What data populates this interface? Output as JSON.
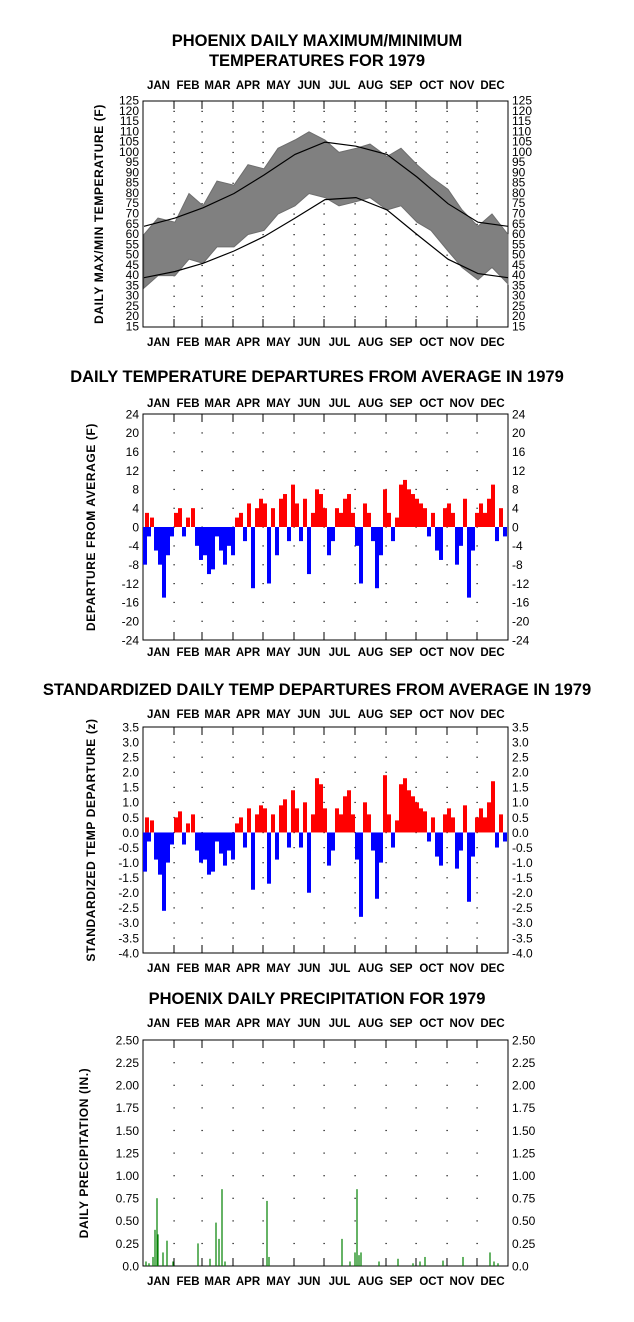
{
  "chart_data": [
    {
      "type": "area",
      "title_lines": [
        "PHOENIX DAILY MAXIMUM/MINIMUM",
        "TEMPERATURES FOR 1979"
      ],
      "ylabel": "DAILY MAX/MIN TEMPERATURE (F)",
      "months": [
        "JAN",
        "FEB",
        "MAR",
        "APR",
        "MAY",
        "JUN",
        "JUL",
        "AUG",
        "SEP",
        "OCT",
        "NOV",
        "DEC"
      ],
      "ylim": [
        15,
        125
      ],
      "yticks": [
        15,
        20,
        25,
        30,
        35,
        40,
        45,
        50,
        55,
        60,
        65,
        70,
        75,
        80,
        85,
        90,
        95,
        100,
        105,
        110,
        115,
        120,
        125
      ],
      "grid": "dotted",
      "series": [
        {
          "role": "observed daily max",
          "x_day": [
            1,
            15,
            32,
            46,
            60,
            74,
            91,
            105,
            121,
            135,
            152,
            166,
            182,
            196,
            213,
            227,
            244,
            258,
            274,
            288,
            305,
            319,
            335,
            349,
            365
          ],
          "values": [
            60,
            68,
            66,
            80,
            74,
            86,
            84,
            94,
            92,
            102,
            106,
            110,
            106,
            100,
            102,
            104,
            98,
            102,
            94,
            88,
            82,
            72,
            64,
            70,
            60
          ]
        },
        {
          "role": "observed daily min",
          "x_day": [
            1,
            15,
            32,
            46,
            60,
            74,
            91,
            105,
            121,
            135,
            152,
            166,
            182,
            196,
            213,
            227,
            244,
            258,
            274,
            288,
            305,
            319,
            335,
            349,
            365
          ],
          "values": [
            34,
            40,
            40,
            48,
            46,
            54,
            54,
            60,
            62,
            70,
            74,
            80,
            78,
            74,
            76,
            78,
            72,
            74,
            66,
            62,
            52,
            44,
            38,
            44,
            36
          ]
        },
        {
          "role": "normal max",
          "x_day": [
            1,
            32,
            60,
            91,
            121,
            152,
            182,
            213,
            244,
            274,
            305,
            335,
            365
          ],
          "values": [
            64,
            68,
            73,
            80,
            89,
            99,
            105,
            103,
            99,
            88,
            75,
            66,
            64
          ]
        },
        {
          "role": "normal min",
          "x_day": [
            1,
            32,
            60,
            91,
            121,
            152,
            182,
            213,
            244,
            274,
            305,
            335,
            365
          ],
          "values": [
            39,
            42,
            46,
            52,
            59,
            68,
            77,
            78,
            72,
            60,
            48,
            41,
            39
          ]
        }
      ]
    },
    {
      "type": "bar",
      "title": "DAILY TEMPERATURE DEPARTURES FROM AVERAGE IN 1979",
      "ylabel": "DEPARTURE FROM AVERAGE (F)",
      "months": [
        "JAN",
        "FEB",
        "MAR",
        "APR",
        "MAY",
        "JUN",
        "JUL",
        "AUG",
        "SEP",
        "OCT",
        "NOV",
        "DEC"
      ],
      "ylim": [
        -24,
        24
      ],
      "yticks": [
        -24,
        -20,
        -16,
        -12,
        -8,
        -4,
        0,
        4,
        8,
        12,
        16,
        20,
        24
      ],
      "grid": "dotted",
      "colors": {
        "positive": "#ff0000",
        "negative": "#0000ff"
      },
      "x_day": [
        2,
        4,
        6,
        9,
        13,
        17,
        21,
        25,
        29,
        33,
        37,
        41,
        45,
        50,
        54,
        58,
        62,
        66,
        70,
        74,
        78,
        82,
        86,
        90,
        94,
        98,
        102,
        106,
        110,
        114,
        118,
        122,
        126,
        130,
        134,
        138,
        142,
        146,
        150,
        154,
        158,
        162,
        166,
        170,
        174,
        178,
        182,
        186,
        190,
        194,
        198,
        202,
        206,
        210,
        214,
        218,
        222,
        226,
        230,
        234,
        238,
        242,
        246,
        250,
        254,
        258,
        262,
        266,
        270,
        274,
        278,
        282,
        286,
        290,
        294,
        298,
        302,
        306,
        310,
        314,
        318,
        322,
        326,
        330,
        334,
        338,
        342,
        346,
        350,
        354,
        358,
        362
      ],
      "values": [
        -8,
        3,
        -2,
        2,
        -5,
        -8,
        -15,
        -6,
        -2,
        3,
        4,
        -2,
        2,
        4,
        -4,
        -7,
        -6,
        -10,
        -9,
        -2,
        -5,
        -8,
        -4,
        -6,
        2,
        3,
        -3,
        5,
        -13,
        4,
        6,
        5,
        -12,
        4,
        -6,
        6,
        7,
        -3,
        9,
        5,
        -3,
        6,
        -10,
        3,
        8,
        7,
        4,
        -6,
        -3,
        4,
        3,
        6,
        7,
        3,
        -4,
        -12,
        5,
        3,
        -3,
        -13,
        -6,
        8,
        3,
        -3,
        2,
        9,
        10,
        8,
        7,
        6,
        5,
        4,
        -2,
        3,
        -5,
        -7,
        4,
        5,
        3,
        -8,
        -4,
        6,
        -15,
        -5,
        3,
        5,
        3,
        6,
        9,
        -3,
        4,
        -2
      ]
    },
    {
      "type": "bar",
      "title": "STANDARDIZED DAILY TEMP DEPARTURES FROM AVERAGE IN 1979",
      "ylabel": "STANDARDIZED TEMP DEPARTURE (z)",
      "months": [
        "JAN",
        "FEB",
        "MAR",
        "APR",
        "MAY",
        "JUN",
        "JUL",
        "AUG",
        "SEP",
        "OCT",
        "NOV",
        "DEC"
      ],
      "ylim": [
        -4.0,
        3.5
      ],
      "yticks": [
        -4.0,
        -3.5,
        -3.0,
        -2.5,
        -2.0,
        -1.5,
        -1.0,
        -0.5,
        0.0,
        0.5,
        1.0,
        1.5,
        2.0,
        2.5,
        3.0,
        3.5
      ],
      "ytick_labels": [
        "-4.0",
        "-3.5",
        "-3.0",
        "-2.5",
        "-2.0",
        "-1.5",
        "-1.0",
        "-0.5",
        "0.0",
        "0.5",
        "1.0",
        "1.5",
        "2.0",
        "2.5",
        "3.0",
        "3.5"
      ],
      "grid": "dotted",
      "colors": {
        "positive": "#ff0000",
        "negative": "#0000ff"
      },
      "x_day": [
        2,
        4,
        6,
        9,
        13,
        17,
        21,
        25,
        29,
        33,
        37,
        41,
        45,
        50,
        54,
        58,
        62,
        66,
        70,
        74,
        78,
        82,
        86,
        90,
        94,
        98,
        102,
        106,
        110,
        114,
        118,
        122,
        126,
        130,
        134,
        138,
        142,
        146,
        150,
        154,
        158,
        162,
        166,
        170,
        174,
        178,
        182,
        186,
        190,
        194,
        198,
        202,
        206,
        210,
        214,
        218,
        222,
        226,
        230,
        234,
        238,
        242,
        246,
        250,
        254,
        258,
        262,
        266,
        270,
        274,
        278,
        282,
        286,
        290,
        294,
        298,
        302,
        306,
        310,
        314,
        318,
        322,
        326,
        330,
        334,
        338,
        342,
        346,
        350,
        354,
        358,
        362
      ],
      "values": [
        -1.3,
        0.5,
        -0.3,
        0.4,
        -0.9,
        -1.4,
        -2.6,
        -1.0,
        -0.4,
        0.5,
        0.7,
        -0.4,
        0.3,
        0.6,
        -0.6,
        -1.0,
        -0.9,
        -1.4,
        -1.3,
        -0.3,
        -0.7,
        -1.1,
        -0.6,
        -0.9,
        0.3,
        0.5,
        -0.5,
        0.8,
        -1.9,
        0.6,
        0.9,
        0.8,
        -1.7,
        0.6,
        -0.9,
        0.9,
        1.1,
        -0.5,
        1.4,
        0.8,
        -0.5,
        1.0,
        -2.0,
        0.6,
        1.8,
        1.6,
        0.8,
        -1.1,
        -0.6,
        0.8,
        0.6,
        1.2,
        1.4,
        0.6,
        -0.9,
        -2.8,
        1.0,
        0.6,
        -0.6,
        -2.2,
        -1.0,
        1.9,
        0.6,
        -0.5,
        0.4,
        1.6,
        1.8,
        1.4,
        1.2,
        1.0,
        0.8,
        0.7,
        -0.3,
        0.5,
        -0.8,
        -1.1,
        0.6,
        0.8,
        0.5,
        -1.2,
        -0.6,
        0.9,
        -2.3,
        -0.8,
        0.5,
        0.8,
        0.5,
        1.0,
        1.7,
        -0.5,
        0.6,
        -0.3
      ]
    },
    {
      "type": "bar",
      "title": "PHOENIX DAILY PRECIPITATION FOR 1979",
      "ylabel": "DAILY PRECIPITATION (IN.)",
      "months": [
        "JAN",
        "FEB",
        "MAR",
        "APR",
        "MAY",
        "JUN",
        "JUL",
        "AUG",
        "SEP",
        "OCT",
        "NOV",
        "DEC"
      ],
      "ylim": [
        0.0,
        2.5
      ],
      "yticks": [
        0.0,
        0.25,
        0.5,
        0.75,
        1.0,
        1.25,
        1.5,
        1.75,
        2.0,
        2.25,
        2.5
      ],
      "ytick_labels": [
        "0.0",
        "0.25",
        "0.50",
        "0.75",
        "1.00",
        "1.25",
        "1.50",
        "1.75",
        "2.00",
        "2.25",
        "2.50"
      ],
      "grid": "dotted",
      "colors": {
        "bars": "#008000"
      },
      "x_day": [
        3,
        6,
        10,
        12,
        14,
        15,
        20,
        24,
        30,
        55,
        67,
        73,
        76,
        79,
        82,
        124,
        126,
        199,
        207,
        212,
        214,
        216,
        218,
        236,
        255,
        270,
        277,
        282,
        300,
        320,
        347,
        351,
        355
      ],
      "values": [
        0.05,
        0.03,
        0.1,
        0.4,
        0.75,
        0.35,
        0.15,
        0.28,
        0.05,
        0.25,
        0.08,
        0.48,
        0.3,
        0.85,
        0.05,
        0.72,
        0.1,
        0.3,
        0.05,
        0.15,
        0.85,
        0.12,
        0.15,
        0.05,
        0.08,
        0.03,
        0.05,
        0.1,
        0.06,
        0.1,
        0.15,
        0.05,
        0.03
      ]
    }
  ]
}
